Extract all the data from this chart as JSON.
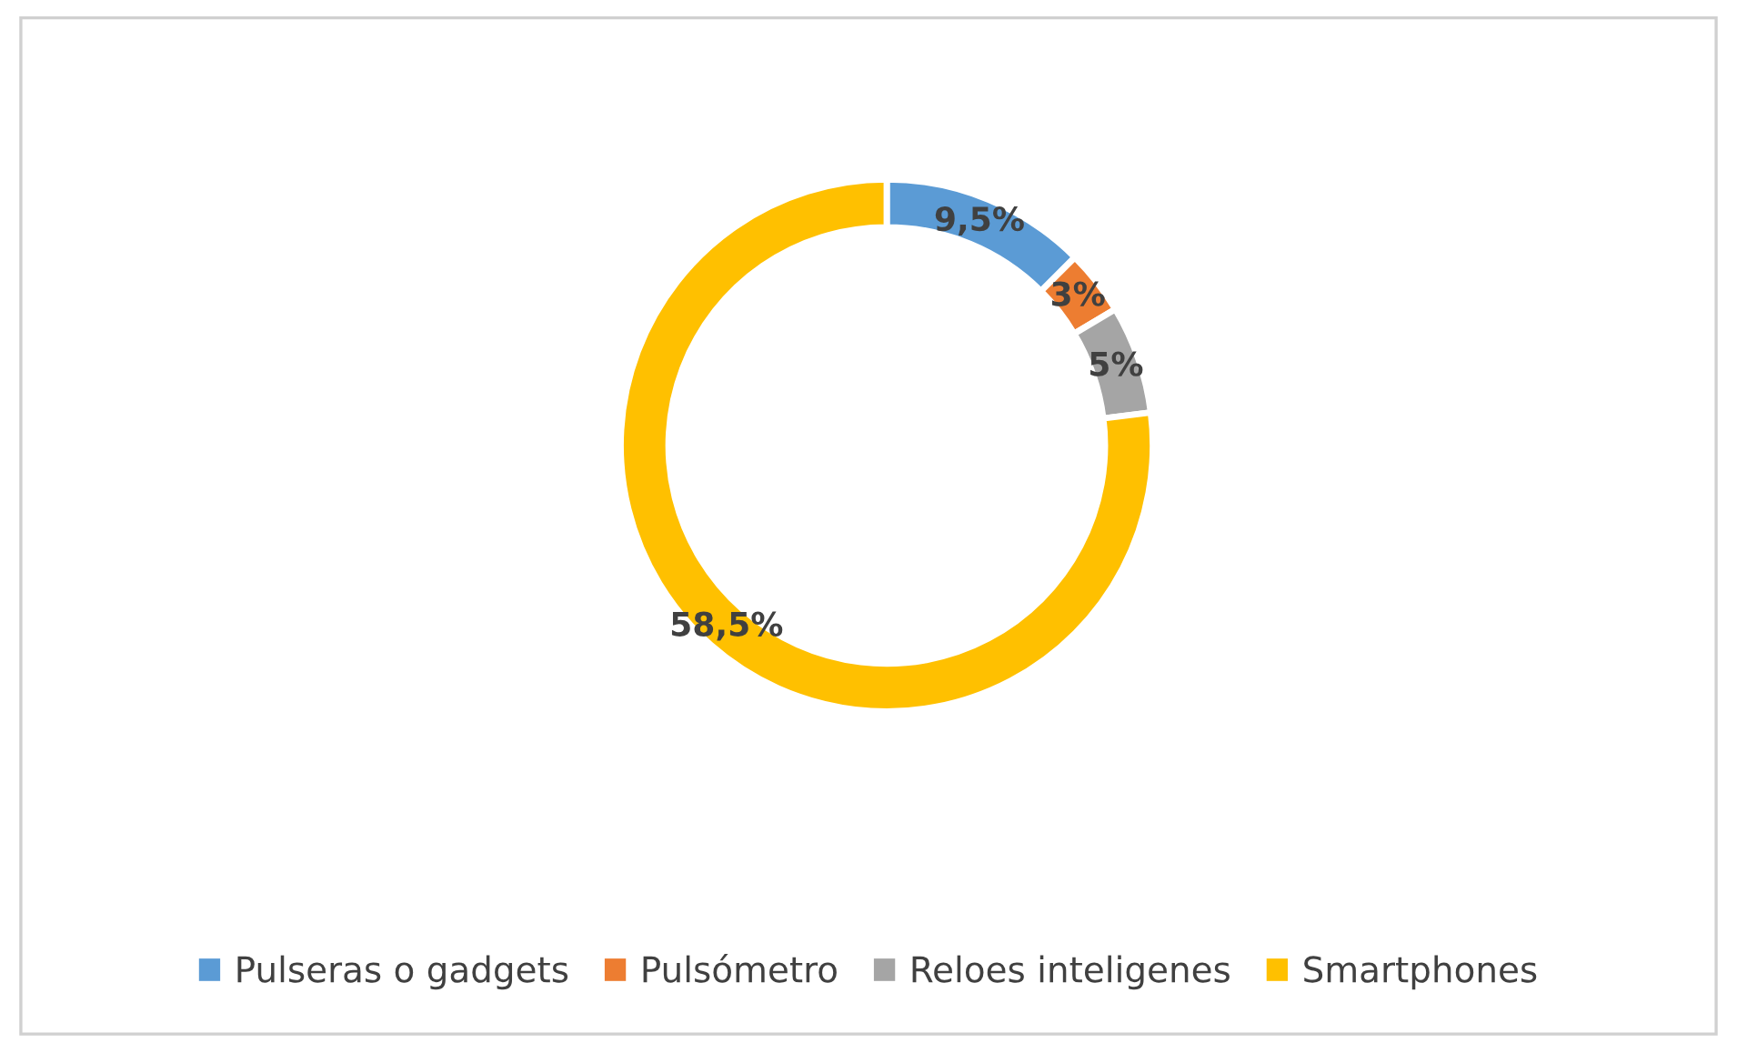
{
  "chart_data": {
    "type": "donut",
    "categories": [
      "Pulseras o gadgets",
      "Pulsómetro",
      "Reloes inteligenes",
      "Smartphones"
    ],
    "values": [
      9.5,
      3,
      5,
      58.5
    ],
    "value_labels": [
      "9,5%",
      "3%",
      "5%",
      "58,5%"
    ],
    "colors": [
      "#5b9bd5",
      "#ed7d31",
      "#a5a5a5",
      "#ffc000"
    ],
    "legend": "bottom"
  }
}
